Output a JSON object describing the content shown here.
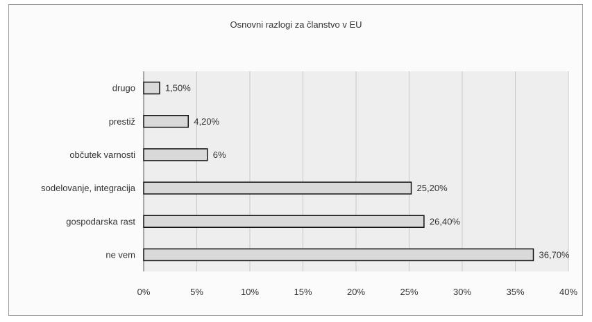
{
  "chart_data": {
    "type": "bar",
    "orientation": "horizontal",
    "title": "Osnovni razlogi za članstvo v EU",
    "categories": [
      "drugo",
      "prestiž",
      "občutek varnosti",
      "sodelovanje, integracija",
      "gospodarska rast",
      "ne vem"
    ],
    "values": [
      1.5,
      4.2,
      6,
      25.2,
      26.4,
      36.7
    ],
    "data_labels": [
      "1,50%",
      "4,20%",
      "6%",
      "25,20%",
      "26,40%",
      "36,70%"
    ],
    "x_ticks": [
      "0%",
      "5%",
      "10%",
      "15%",
      "20%",
      "25%",
      "30%",
      "35%",
      "40%"
    ],
    "xlim": [
      0,
      40
    ],
    "grid": true,
    "legend": "none",
    "colors": {
      "bar_fill": "#d9d9d9",
      "bar_stroke": "#111111",
      "grid": "#c8c8c8",
      "plot_bg": "#eeeeee"
    }
  }
}
